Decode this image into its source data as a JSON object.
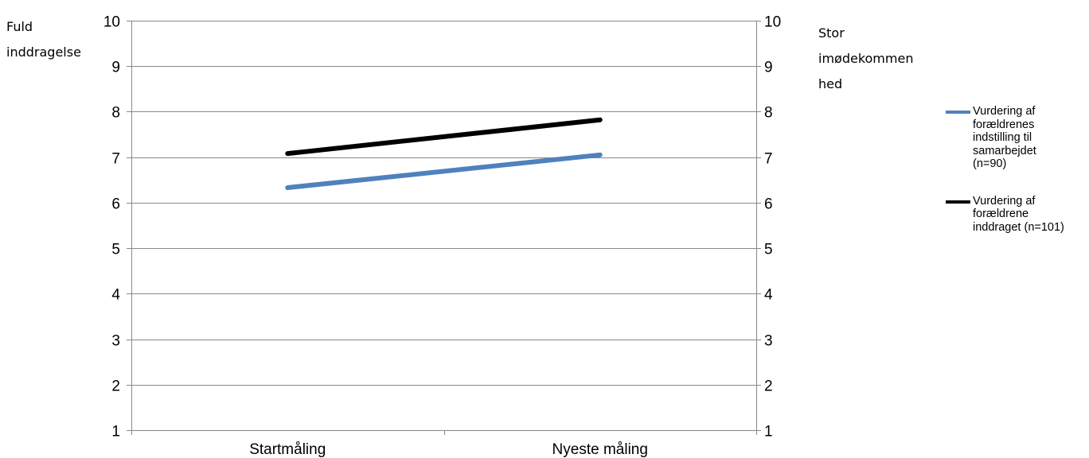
{
  "chart_data": {
    "type": "line",
    "categories": [
      "Startmåling",
      "Nyeste måling"
    ],
    "series": [
      {
        "name": "Vurdering af forældrenes indstilling til samarbejdet (n=90)",
        "name_lines": [
          "Vurdering af",
          "forældrenes",
          "indstilling til",
          "samarbejdet",
          "(n=90)"
        ],
        "values": [
          6.33,
          7.05
        ],
        "color": "#4f81bd"
      },
      {
        "name": "Vurdering af forældrene inddraget (n=101)",
        "name_lines": [
          "Vurdering af",
          "forældrene",
          "inddraget (n=101)"
        ],
        "values": [
          7.08,
          7.82
        ],
        "color": "#000000"
      }
    ],
    "ylim": [
      1,
      10
    ],
    "yticks": [
      "1",
      "2",
      "3",
      "4",
      "5",
      "6",
      "7",
      "8",
      "9",
      "10"
    ],
    "left_axis_label_lines": [
      "Fuld",
      "inddragelse"
    ],
    "right_axis_label_lines": [
      "Stor",
      "imødekommen",
      "hed"
    ],
    "grid": true,
    "legend_position": "right"
  }
}
